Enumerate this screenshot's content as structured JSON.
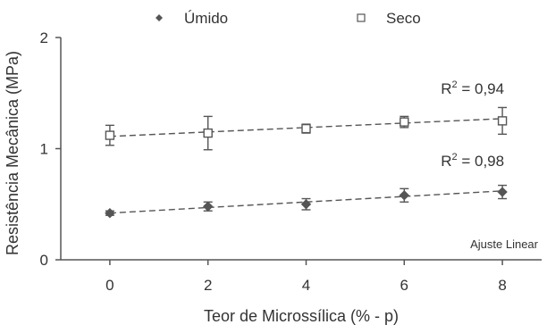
{
  "chart_data": {
    "type": "scatter",
    "xlabel": "Teor de Microssílica (% - p)",
    "ylabel": "Resistência Mecânica (MPa)",
    "xlim": [
      -1,
      8.8
    ],
    "ylim": [
      0,
      2
    ],
    "xticks": [
      "0",
      "2",
      "4",
      "6",
      "8"
    ],
    "yticks": [
      "0",
      "1",
      "2"
    ],
    "grid": false,
    "legend_position": "top",
    "series": [
      {
        "name": "Úmido",
        "marker": "diamond-filled",
        "color": "#555555",
        "x": [
          0,
          2,
          4,
          6,
          8
        ],
        "y": [
          0.42,
          0.48,
          0.5,
          0.58,
          0.61
        ],
        "err": [
          0.02,
          0.04,
          0.05,
          0.06,
          0.06
        ],
        "fit": {
          "label": "R",
          "sup": "2",
          "value": " = 0,98",
          "y0": 0.42,
          "y1": 0.62
        }
      },
      {
        "name": "Seco",
        "marker": "square-open",
        "color": "#555555",
        "x": [
          0,
          2,
          4,
          6,
          8
        ],
        "y": [
          1.12,
          1.14,
          1.18,
          1.24,
          1.25
        ],
        "err": [
          0.09,
          0.15,
          0.04,
          0.05,
          0.12
        ],
        "fit": {
          "label": "R",
          "sup": "2",
          "value": " = 0,94",
          "y0": 1.11,
          "y1": 1.27
        }
      }
    ],
    "note": "Ajuste Linear"
  }
}
